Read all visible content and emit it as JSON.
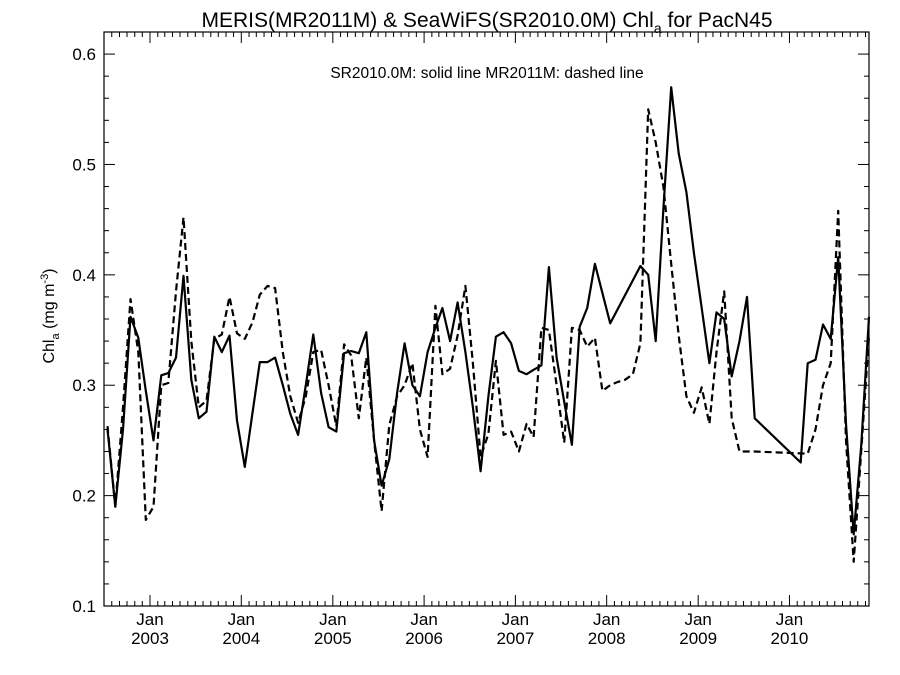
{
  "chart_data": {
    "type": "line",
    "title": {
      "main": "MERIS(MR2011M) & SeaWiFS(SR2010.0M)  Chl",
      "sub": "a",
      "rest": " for PacN45"
    },
    "ylabel": {
      "main": "Chl",
      "sub": "a",
      "rest": " (mg m",
      "sup": "-3",
      "close": ")"
    },
    "annotation": "SR2010.0M: solid line   MR2011M: dashed line",
    "ylim": [
      0.1,
      0.62
    ],
    "yticks": [
      0.1,
      0.2,
      0.3,
      0.4,
      0.5,
      0.6
    ],
    "ytick_labels": [
      "0.1",
      "0.2",
      "0.3",
      "0.4",
      "0.5",
      "0.6"
    ],
    "xlim": [
      "2002-07-01",
      "2010-11-15"
    ],
    "xticks": [
      {
        "date": "2003-01-01",
        "month": "Jan",
        "year": "2003"
      },
      {
        "date": "2004-01-01",
        "month": "Jan",
        "year": "2004"
      },
      {
        "date": "2005-01-01",
        "month": "Jan",
        "year": "2005"
      },
      {
        "date": "2006-01-01",
        "month": "Jan",
        "year": "2006"
      },
      {
        "date": "2007-01-01",
        "month": "Jan",
        "year": "2007"
      },
      {
        "date": "2008-01-01",
        "month": "Jan",
        "year": "2008"
      },
      {
        "date": "2009-01-01",
        "month": "Jan",
        "year": "2009"
      },
      {
        "date": "2010-01-01",
        "month": "Jan",
        "year": "2010"
      }
    ],
    "series": [
      {
        "name": "SR2010.0M",
        "style": "solid",
        "x": [
          "2002-07",
          "2002-08",
          "2002-09",
          "2002-10",
          "2002-11",
          "2002-12",
          "2003-01",
          "2003-02",
          "2003-03",
          "2003-04",
          "2003-05",
          "2003-06",
          "2003-07",
          "2003-08",
          "2003-09",
          "2003-10",
          "2003-11",
          "2003-12",
          "2004-01",
          "2004-02",
          "2004-03",
          "2004-04",
          "2004-05",
          "2004-06",
          "2004-07",
          "2004-08",
          "2004-09",
          "2004-10",
          "2004-11",
          "2004-12",
          "2005-01",
          "2005-02",
          "2005-03",
          "2005-04",
          "2005-05",
          "2005-06",
          "2005-07",
          "2005-08",
          "2005-09",
          "2005-10",
          "2005-11",
          "2005-12",
          "2006-01",
          "2006-02",
          "2006-03",
          "2006-04",
          "2006-05",
          "2006-06",
          "2006-07",
          "2006-08",
          "2006-09",
          "2006-10",
          "2006-11",
          "2006-12",
          "2007-01",
          "2007-02",
          "2007-03",
          "2007-04",
          "2007-05",
          "2007-06",
          "2007-07",
          "2007-08",
          "2007-09",
          "2007-10",
          "2007-11",
          "2008-01",
          "2008-05",
          "2008-06",
          "2008-07",
          "2008-08",
          "2008-09",
          "2008-10",
          "2008-11",
          "2008-12",
          "2009-01",
          "2009-02",
          "2009-03",
          "2009-04",
          "2009-05",
          "2009-06",
          "2009-07",
          "2009-08",
          "2010-02",
          "2010-03",
          "2010-04",
          "2010-05",
          "2010-06",
          "2010-07",
          "2010-08",
          "2010-09",
          "2010-10",
          "2010-11"
        ],
        "y": [
          0.26,
          0.19,
          0.26,
          0.362,
          0.343,
          0.295,
          0.25,
          0.309,
          0.311,
          0.325,
          0.399,
          0.305,
          0.27,
          0.276,
          0.344,
          0.33,
          0.345,
          0.268,
          0.226,
          0.275,
          0.321,
          0.321,
          0.325,
          0.3,
          0.274,
          0.255,
          0.3,
          0.346,
          0.293,
          0.262,
          0.258,
          0.329,
          0.331,
          0.329,
          0.348,
          0.25,
          0.209,
          0.233,
          0.293,
          0.338,
          0.3,
          0.29,
          0.33,
          0.352,
          0.37,
          0.34,
          0.375,
          0.33,
          0.28,
          0.222,
          0.29,
          0.344,
          0.348,
          0.338,
          0.313,
          0.31,
          0.314,
          0.318,
          0.407,
          0.325,
          0.285,
          0.246,
          0.353,
          0.37,
          0.41,
          0.356,
          0.408,
          0.4,
          0.34,
          0.46,
          0.57,
          0.51,
          0.475,
          0.42,
          0.37,
          0.32,
          0.366,
          0.36,
          0.308,
          0.34,
          0.38,
          0.27,
          0.23,
          0.32,
          0.323,
          0.355,
          0.342,
          0.416,
          0.265,
          0.165,
          0.245,
          0.362
        ]
      },
      {
        "name": "MR2011M",
        "style": "dashed",
        "x": [
          "2002-07",
          "2002-08",
          "2002-09",
          "2002-10",
          "2002-11",
          "2002-12",
          "2003-01",
          "2003-02",
          "2003-03",
          "2003-04",
          "2003-05",
          "2003-06",
          "2003-07",
          "2003-08",
          "2003-09",
          "2003-10",
          "2003-11",
          "2003-12",
          "2004-01",
          "2004-02",
          "2004-03",
          "2004-04",
          "2004-05",
          "2004-06",
          "2004-07",
          "2004-08",
          "2004-09",
          "2004-10",
          "2004-11",
          "2004-12",
          "2005-01",
          "2005-02",
          "2005-03",
          "2005-04",
          "2005-05",
          "2005-06",
          "2005-07",
          "2005-08",
          "2005-09",
          "2005-10",
          "2005-11",
          "2005-12",
          "2006-01",
          "2006-02",
          "2006-03",
          "2006-04",
          "2006-05",
          "2006-06",
          "2006-07",
          "2006-08",
          "2006-09",
          "2006-10",
          "2006-11",
          "2006-12",
          "2007-01",
          "2007-02",
          "2007-03",
          "2007-04",
          "2007-05",
          "2007-06",
          "2007-07",
          "2007-08",
          "2007-09",
          "2007-10",
          "2007-11",
          "2007-12",
          "2008-01",
          "2008-02",
          "2008-03",
          "2008-04",
          "2008-05",
          "2008-06",
          "2008-07",
          "2008-08",
          "2008-09",
          "2008-10",
          "2008-11",
          "2008-12",
          "2009-01",
          "2009-02",
          "2009-03",
          "2009-04",
          "2009-05",
          "2009-06",
          "2009-07",
          "2009-08",
          "2010-03",
          "2010-04",
          "2010-05",
          "2010-06",
          "2010-07",
          "2010-08",
          "2010-09",
          "2010-10",
          "2010-11"
        ],
        "y": [
          0.263,
          0.19,
          0.28,
          0.378,
          0.33,
          0.178,
          0.19,
          0.3,
          0.302,
          0.385,
          0.452,
          0.34,
          0.28,
          0.286,
          0.342,
          0.346,
          0.38,
          0.347,
          0.342,
          0.357,
          0.382,
          0.39,
          0.388,
          0.33,
          0.29,
          0.266,
          0.29,
          0.33,
          0.332,
          0.3,
          0.263,
          0.337,
          0.327,
          0.27,
          0.325,
          0.25,
          0.186,
          0.264,
          0.29,
          0.3,
          0.32,
          0.26,
          0.235,
          0.372,
          0.31,
          0.315,
          0.345,
          0.39,
          0.32,
          0.235,
          0.256,
          0.322,
          0.255,
          0.258,
          0.24,
          0.265,
          0.253,
          0.352,
          0.35,
          0.3,
          0.248,
          0.352,
          0.35,
          0.335,
          0.343,
          0.295,
          0.3,
          0.303,
          0.305,
          0.31,
          0.338,
          0.55,
          0.52,
          0.48,
          0.41,
          0.345,
          0.29,
          0.275,
          0.298,
          0.265,
          0.33,
          0.385,
          0.27,
          0.24,
          0.24,
          0.24,
          0.238,
          0.26,
          0.3,
          0.32,
          0.458,
          0.25,
          0.14,
          0.24,
          0.345
        ]
      }
    ]
  }
}
